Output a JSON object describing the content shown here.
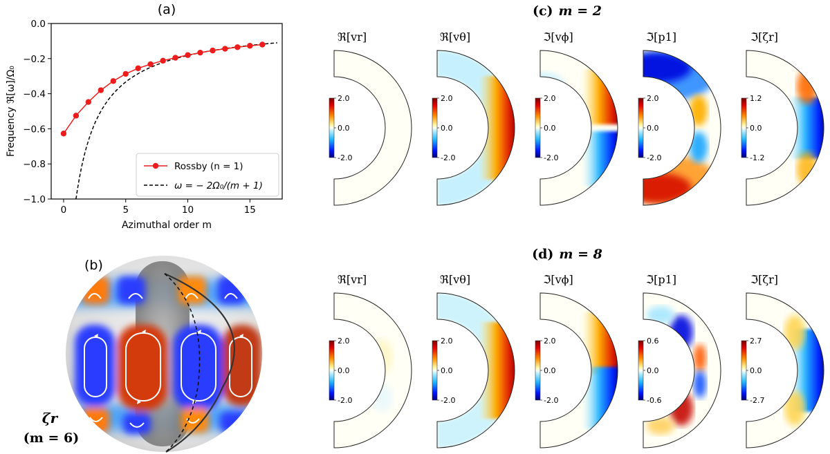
{
  "chart_data": [
    {
      "type": "line",
      "panel_label": "(a)",
      "xlabel": "Azimuthal order m",
      "ylabel": "Frequency ℜ[ω]/Ω₀",
      "xlim": [
        -1,
        17.6
      ],
      "ylim": [
        -1.0,
        0.0
      ],
      "xticks": [
        0,
        5,
        10,
        15
      ],
      "yticks": [
        0.0,
        -0.2,
        -0.4,
        -0.6,
        -0.8,
        -1.0
      ],
      "xtick_labels": [
        "0",
        "5",
        "10",
        "15"
      ],
      "ytick_labels": [
        "0.0",
        "−0.2",
        "−0.4",
        "−0.6",
        "−0.8",
        "−1.0"
      ],
      "series": [
        {
          "name": "Rossby (n = 1)",
          "style": "solid-marker",
          "color": "#ee1d1d",
          "x": [
            0,
            1,
            2,
            3,
            4,
            5,
            6,
            7,
            8,
            9,
            10,
            11,
            12,
            13,
            14,
            15,
            16
          ],
          "y": [
            -0.627,
            -0.525,
            -0.447,
            -0.38,
            -0.328,
            -0.287,
            -0.255,
            -0.232,
            -0.212,
            -0.195,
            -0.18,
            -0.166,
            -0.154,
            -0.144,
            -0.135,
            -0.127,
            -0.12
          ]
        },
        {
          "name": "ω = − 2Ω₀/(m + 1)",
          "style": "dashed",
          "color": "#000000",
          "formula": "-2/(m+1)",
          "x_range": [
            1,
            17.2
          ]
        }
      ],
      "legend_labels": [
        "Rossby (n = 1)",
        "ω = − 2Ω₀/(m + 1)"
      ]
    },
    {
      "type": "heatmap",
      "panel_label": "(c)",
      "title": "m = 2",
      "panels": [
        {
          "title": "ℜ[vr]",
          "cbar": [
            "2.0",
            "0.0",
            "-2.0"
          ]
        },
        {
          "title": "ℜ[vθ]",
          "cbar": [
            "2.0",
            "0.0",
            "-2.0"
          ]
        },
        {
          "title": "ℑ[vϕ]",
          "cbar": [
            "2.0",
            "0.0",
            "-2.0"
          ]
        },
        {
          "title": "ℑ[p1]",
          "cbar": [
            "2.0",
            "0.0",
            "-2.0"
          ]
        },
        {
          "title": "ℑ[ζr]",
          "cbar": [
            "1.2",
            "0.0",
            "-1.2"
          ]
        }
      ]
    },
    {
      "type": "heatmap",
      "panel_label": "(d)",
      "title": "m = 8",
      "panels": [
        {
          "title": "ℜ[vr]",
          "cbar": [
            "2.0",
            "0.0",
            "-2.0"
          ]
        },
        {
          "title": "ℜ[vθ]",
          "cbar": [
            "2.0",
            "0.0",
            "-2.0"
          ]
        },
        {
          "title": "ℑ[vϕ]",
          "cbar": [
            "2.0",
            "0.0",
            "-2.0"
          ]
        },
        {
          "title": "ℑ[p1]",
          "cbar": [
            "0.6",
            "0.0",
            "-0.6"
          ]
        },
        {
          "title": "ℑ[ζr]",
          "cbar": [
            "2.7",
            "0.0",
            "-2.7"
          ]
        }
      ]
    },
    {
      "type": "other",
      "panel_label": "(b)",
      "label_field": "ζr",
      "label_mode": "(m = 6)"
    }
  ]
}
